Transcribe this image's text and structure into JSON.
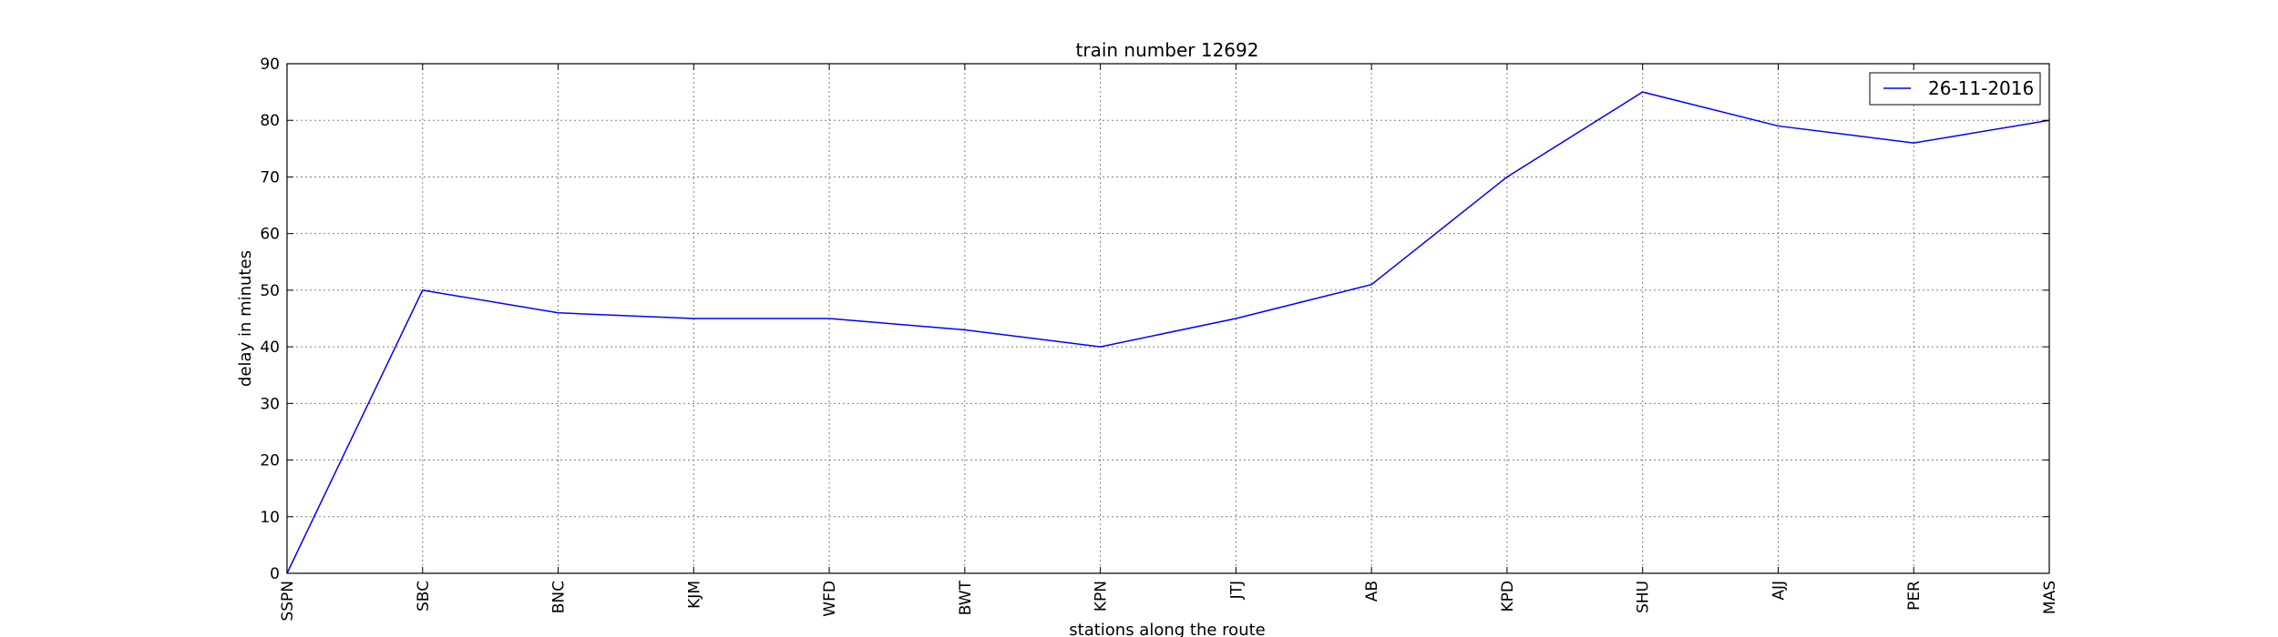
{
  "chart_data": {
    "type": "line",
    "title": "train number 12692",
    "xlabel": "stations along the route",
    "ylabel": "delay in minutes",
    "categories": [
      "SSPN",
      "SBC",
      "BNC",
      "KJM",
      "WFD",
      "BWT",
      "KPN",
      "JTJ",
      "AB",
      "KPD",
      "SHU",
      "AJJ",
      "PER",
      "MAS"
    ],
    "ylim": [
      0,
      90
    ],
    "yticks": [
      0,
      10,
      20,
      30,
      40,
      50,
      60,
      70,
      80,
      90
    ],
    "grid": true,
    "legend_position": "top-right",
    "series": [
      {
        "name": "26-11-2016",
        "color": "#0000ff",
        "values": [
          0,
          50,
          46,
          45,
          45,
          43,
          40,
          45,
          51,
          70,
          85,
          79,
          76,
          80
        ]
      }
    ]
  }
}
